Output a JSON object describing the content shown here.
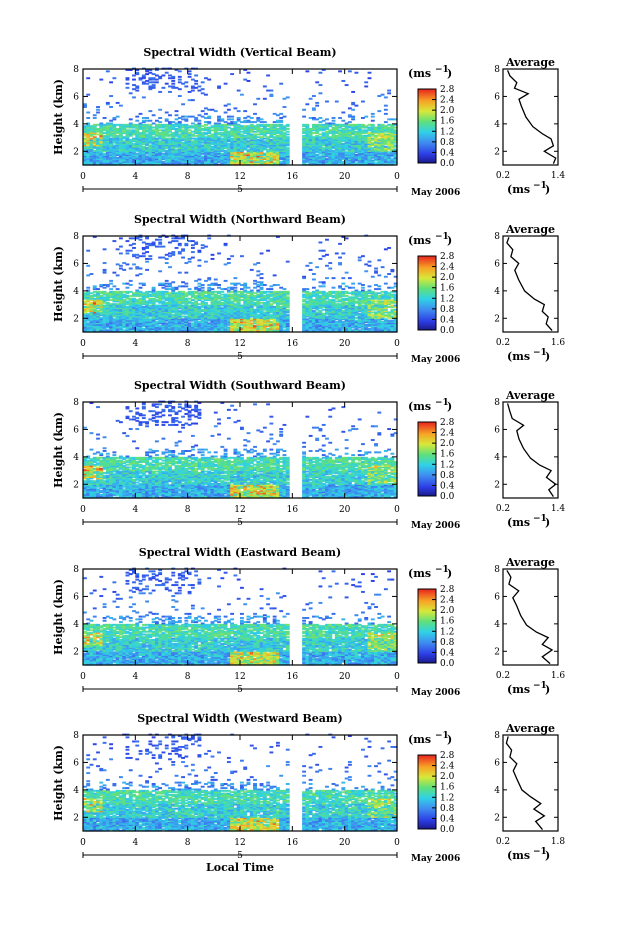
{
  "figure": {
    "xlabel": "Local Time",
    "colorbar_unit": "(ms",
    "colorbar_unit_exp": "−1",
    "colorbar_unit_close": ")",
    "avg_title": "Average",
    "avg_unit": "(ms",
    "avg_unit_exp": "−1",
    "avg_unit_close": ")",
    "date_label": "May 2006",
    "day_label": "5",
    "ylabel": "Height (km)"
  },
  "chart_data": [
    {
      "type": "heatmap",
      "title": "Spectral Width (Vertical Beam)",
      "xlabel": "",
      "ylabel": "Height (km)",
      "x_ticks": [
        "0",
        "4",
        "8",
        "12",
        "16",
        "20",
        "0"
      ],
      "y_ticks": [
        "2",
        "4",
        "6",
        "8"
      ],
      "xlim": [
        0,
        24
      ],
      "ylim": [
        1,
        8
      ],
      "data_gap_hours": [
        15.8,
        16.7
      ],
      "colorbar": {
        "ticks": [
          "0.0",
          "0.4",
          "0.8",
          "1.2",
          "1.6",
          "2.0",
          "2.4",
          "2.8"
        ],
        "range": [
          0,
          2.8
        ]
      },
      "average_profile": {
        "title": "Average",
        "xlabel": "(ms⁻¹)",
        "xticks": [
          "0.2",
          "1.4"
        ],
        "xlim": [
          0.2,
          1.4
        ],
        "ylim": [
          1,
          8
        ],
        "yticks": [
          "2",
          "4",
          "6",
          "8"
        ],
        "points": [
          [
            1.3,
            1.1
          ],
          [
            1.35,
            1.5
          ],
          [
            1.1,
            2.0
          ],
          [
            1.3,
            2.4
          ],
          [
            1.25,
            2.9
          ],
          [
            1.05,
            3.3
          ],
          [
            0.85,
            3.8
          ],
          [
            0.7,
            4.5
          ],
          [
            0.6,
            5.3
          ],
          [
            0.55,
            5.8
          ],
          [
            0.75,
            6.2
          ],
          [
            0.45,
            6.6
          ],
          [
            0.5,
            7.0
          ],
          [
            0.35,
            7.5
          ],
          [
            0.3,
            7.9
          ]
        ]
      }
    },
    {
      "type": "heatmap",
      "title": "Spectral Width (Northward Beam)",
      "xlabel": "",
      "ylabel": "Height (km)",
      "x_ticks": [
        "0",
        "4",
        "8",
        "12",
        "16",
        "20",
        "0"
      ],
      "y_ticks": [
        "2",
        "4",
        "6",
        "8"
      ],
      "xlim": [
        0,
        24
      ],
      "ylim": [
        1,
        8
      ],
      "data_gap_hours": [
        15.8,
        16.7
      ],
      "colorbar": {
        "ticks": [
          "0.0",
          "0.4",
          "0.8",
          "1.2",
          "1.6",
          "2.0",
          "2.4",
          "2.8"
        ],
        "range": [
          0,
          2.8
        ]
      },
      "average_profile": {
        "title": "Average",
        "xlabel": "(ms⁻¹)",
        "xticks": [
          "0.2",
          "1.6"
        ],
        "xlim": [
          0.2,
          1.6
        ],
        "ylim": [
          1,
          8
        ],
        "yticks": [
          "2",
          "4",
          "6",
          "8"
        ],
        "points": [
          [
            1.45,
            1.1
          ],
          [
            1.3,
            1.6
          ],
          [
            1.35,
            2.1
          ],
          [
            1.2,
            2.5
          ],
          [
            1.25,
            3.0
          ],
          [
            1.0,
            3.4
          ],
          [
            0.75,
            4.0
          ],
          [
            0.6,
            4.8
          ],
          [
            0.5,
            5.5
          ],
          [
            0.6,
            6.0
          ],
          [
            0.4,
            6.5
          ],
          [
            0.45,
            7.0
          ],
          [
            0.3,
            7.5
          ],
          [
            0.35,
            7.9
          ]
        ]
      }
    },
    {
      "type": "heatmap",
      "title": "Spectral Width (Southward Beam)",
      "xlabel": "",
      "ylabel": "Height (km)",
      "x_ticks": [
        "0",
        "4",
        "8",
        "12",
        "16",
        "20",
        "0"
      ],
      "y_ticks": [
        "2",
        "4",
        "6",
        "8"
      ],
      "xlim": [
        0,
        24
      ],
      "ylim": [
        1,
        8
      ],
      "data_gap_hours": [
        15.8,
        16.7
      ],
      "colorbar": {
        "ticks": [
          "0.0",
          "0.4",
          "0.8",
          "1.2",
          "1.6",
          "2.0",
          "2.4",
          "2.8"
        ],
        "range": [
          0,
          2.8
        ]
      },
      "average_profile": {
        "title": "Average",
        "xlabel": "(ms⁻¹)",
        "xticks": [
          "0.2",
          "1.4"
        ],
        "xlim": [
          0.2,
          1.4
        ],
        "ylim": [
          1,
          8
        ],
        "yticks": [
          "2",
          "4",
          "6",
          "8"
        ],
        "points": [
          [
            1.3,
            1.1
          ],
          [
            1.2,
            1.6
          ],
          [
            1.35,
            2.0
          ],
          [
            1.15,
            2.5
          ],
          [
            1.25,
            3.0
          ],
          [
            1.0,
            3.4
          ],
          [
            0.8,
            3.9
          ],
          [
            0.65,
            4.6
          ],
          [
            0.55,
            5.3
          ],
          [
            0.5,
            5.9
          ],
          [
            0.65,
            6.3
          ],
          [
            0.4,
            6.8
          ],
          [
            0.35,
            7.3
          ],
          [
            0.3,
            7.9
          ]
        ]
      }
    },
    {
      "type": "heatmap",
      "title": "Spectral Width (Eastward Beam)",
      "xlabel": "",
      "ylabel": "Height (km)",
      "x_ticks": [
        "0",
        "4",
        "8",
        "12",
        "16",
        "20",
        "0"
      ],
      "y_ticks": [
        "2",
        "4",
        "6",
        "8"
      ],
      "xlim": [
        0,
        24
      ],
      "ylim": [
        1,
        8
      ],
      "data_gap_hours": [
        15.8,
        16.7
      ],
      "colorbar": {
        "ticks": [
          "0.0",
          "0.4",
          "0.8",
          "1.2",
          "1.6",
          "2.0",
          "2.4",
          "2.8"
        ],
        "range": [
          0,
          2.8
        ]
      },
      "average_profile": {
        "title": "Average",
        "xlabel": "(ms⁻¹)",
        "xticks": [
          "0.2",
          "1.6"
        ],
        "xlim": [
          0.2,
          1.6
        ],
        "ylim": [
          1,
          8
        ],
        "yticks": [
          "2",
          "4",
          "6",
          "8"
        ],
        "points": [
          [
            1.4,
            1.1
          ],
          [
            1.2,
            1.6
          ],
          [
            1.45,
            2.1
          ],
          [
            1.2,
            2.5
          ],
          [
            1.35,
            3.0
          ],
          [
            1.05,
            3.4
          ],
          [
            0.8,
            3.9
          ],
          [
            0.65,
            4.6
          ],
          [
            0.55,
            5.3
          ],
          [
            0.45,
            5.9
          ],
          [
            0.6,
            6.4
          ],
          [
            0.35,
            6.9
          ],
          [
            0.4,
            7.4
          ],
          [
            0.3,
            7.9
          ]
        ]
      }
    },
    {
      "type": "heatmap",
      "title": "Spectral Width (Westward Beam)",
      "xlabel": "Local Time",
      "ylabel": "Height (km)",
      "x_ticks": [
        "0",
        "4",
        "8",
        "12",
        "16",
        "20",
        "0"
      ],
      "y_ticks": [
        "2",
        "4",
        "6",
        "8"
      ],
      "xlim": [
        0,
        24
      ],
      "ylim": [
        1,
        8
      ],
      "data_gap_hours": [
        15.8,
        16.7
      ],
      "colorbar": {
        "ticks": [
          "0.0",
          "0.4",
          "0.8",
          "1.2",
          "1.6",
          "2.0",
          "2.4",
          "2.8"
        ],
        "range": [
          0,
          2.8
        ]
      },
      "average_profile": {
        "title": "Average",
        "xlabel": "(ms⁻¹)",
        "xticks": [
          "0.2",
          "1.8"
        ],
        "xlim": [
          0.2,
          1.8
        ],
        "ylim": [
          1,
          8
        ],
        "yticks": [
          "2",
          "4",
          "6",
          "8"
        ],
        "points": [
          [
            1.35,
            1.1
          ],
          [
            1.15,
            1.7
          ],
          [
            1.4,
            2.1
          ],
          [
            1.1,
            2.6
          ],
          [
            1.3,
            3.0
          ],
          [
            1.0,
            3.5
          ],
          [
            0.75,
            4.0
          ],
          [
            0.6,
            4.8
          ],
          [
            0.5,
            5.4
          ],
          [
            0.6,
            5.9
          ],
          [
            0.4,
            6.4
          ],
          [
            0.45,
            6.9
          ],
          [
            0.3,
            7.4
          ],
          [
            0.35,
            7.9
          ]
        ]
      }
    }
  ]
}
